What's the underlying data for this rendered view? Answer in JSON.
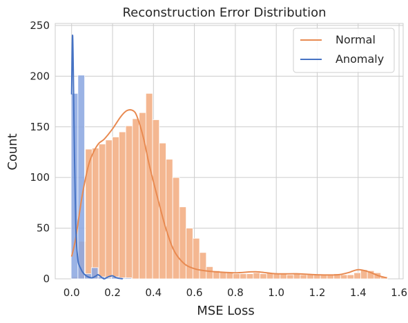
{
  "chart_data": {
    "type": "histogram",
    "title": "Reconstruction Error Distribution",
    "xlabel": "MSE Loss",
    "ylabel": "Count",
    "xlim": [
      -0.08,
      1.62
    ],
    "ylim": [
      0,
      252
    ],
    "xticks": [
      0.0,
      0.2,
      0.4,
      0.6,
      0.8,
      1.0,
      1.2,
      1.4,
      1.6
    ],
    "xtick_labels": [
      "0.0",
      "0.2",
      "0.4",
      "0.6",
      "0.8",
      "1.0",
      "1.2",
      "1.4",
      "1.6"
    ],
    "yticks": [
      0,
      50,
      100,
      150,
      200,
      250
    ],
    "ytick_labels": [
      "0",
      "50",
      "100",
      "150",
      "200",
      "250"
    ],
    "grid": true,
    "legend_position": "top-right",
    "bin_width": 0.0328,
    "series": [
      {
        "name": "Normal",
        "color": "#e88a51",
        "bar_color": "#f4b791",
        "bins_start": 0.002,
        "counts": [
          2,
          37,
          128,
          129,
          133,
          137,
          140,
          145,
          151,
          158,
          164,
          183,
          157,
          134,
          118,
          100,
          71,
          50,
          40,
          26,
          12,
          8,
          7,
          6,
          5,
          5,
          5,
          6,
          5,
          6,
          5,
          5,
          4,
          5,
          4,
          4,
          4,
          4,
          4,
          5,
          4,
          4,
          6,
          9,
          8,
          6,
          2
        ],
        "kde_x": [
          0.0,
          0.02,
          0.05,
          0.08,
          0.1,
          0.13,
          0.16,
          0.2,
          0.24,
          0.27,
          0.3,
          0.32,
          0.35,
          0.38,
          0.42,
          0.46,
          0.5,
          0.55,
          0.6,
          0.65,
          0.7,
          0.8,
          0.9,
          1.0,
          1.1,
          1.2,
          1.3,
          1.35,
          1.4,
          1.45,
          1.5,
          1.54
        ],
        "kde_y": [
          22,
          40,
          80,
          110,
          122,
          133,
          138,
          148,
          160,
          166,
          166,
          160,
          140,
          112,
          80,
          50,
          28,
          15,
          10,
          8,
          7,
          6,
          7,
          5,
          5,
          4,
          4,
          6,
          9,
          7,
          3,
          1
        ]
      },
      {
        "name": "Anomaly",
        "color": "#4572c4",
        "bar_color": "#8aa6e1",
        "bins_start": -0.002,
        "counts": [
          183,
          201,
          5,
          11,
          2,
          1,
          2,
          1,
          1
        ],
        "kde_x": [
          0.0,
          0.005,
          0.012,
          0.02,
          0.03,
          0.045,
          0.06,
          0.08,
          0.1,
          0.12,
          0.13,
          0.15,
          0.16,
          0.18,
          0.2,
          0.22,
          0.25
        ],
        "kde_y": [
          182,
          240,
          150,
          55,
          20,
          10,
          5,
          2,
          1,
          3,
          4,
          1,
          0,
          2,
          3,
          1,
          0
        ]
      }
    ]
  }
}
